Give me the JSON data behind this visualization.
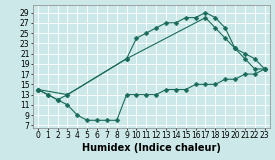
{
  "bg_color": "#cce8e8",
  "grid_color": "#ffffff",
  "line_color": "#1a6b5a",
  "xlabel": "Humidex (Indice chaleur)",
  "xlabel_fontsize": 7,
  "xlim": [
    -0.5,
    23.5
  ],
  "ylim": [
    6.5,
    30.5
  ],
  "xticks": [
    0,
    1,
    2,
    3,
    4,
    5,
    6,
    7,
    8,
    9,
    10,
    11,
    12,
    13,
    14,
    15,
    16,
    17,
    18,
    19,
    20,
    21,
    22,
    23
  ],
  "yticks": [
    7,
    9,
    11,
    13,
    15,
    17,
    19,
    21,
    23,
    25,
    27,
    29
  ],
  "tick_fontsize": 5.5,
  "line1_x": [
    0,
    1,
    2,
    3,
    9,
    10,
    11,
    12,
    13,
    14,
    15,
    16,
    17,
    18,
    19,
    20,
    21,
    22,
    23
  ],
  "line1_y": [
    14,
    13,
    12,
    13,
    20,
    24,
    25,
    26,
    27,
    27,
    28,
    28,
    29,
    28,
    26,
    22,
    20,
    18,
    18
  ],
  "line2_x": [
    0,
    1,
    2,
    3,
    4,
    5,
    6,
    7,
    8,
    9,
    10,
    11,
    12,
    13,
    14,
    15,
    16,
    17,
    18,
    19,
    20,
    21,
    22,
    23
  ],
  "line2_y": [
    14,
    13,
    12,
    11,
    9,
    8,
    8,
    8,
    8,
    13,
    13,
    13,
    13,
    14,
    14,
    14,
    15,
    15,
    15,
    16,
    16,
    17,
    17,
    18
  ],
  "line3_x": [
    0,
    3,
    9,
    17,
    18,
    19,
    20,
    21,
    22,
    23
  ],
  "line3_y": [
    14,
    13,
    20,
    28,
    26,
    24,
    22,
    21,
    20,
    18
  ],
  "marker_size": 2.5,
  "marker": "D",
  "linewidth": 0.8
}
